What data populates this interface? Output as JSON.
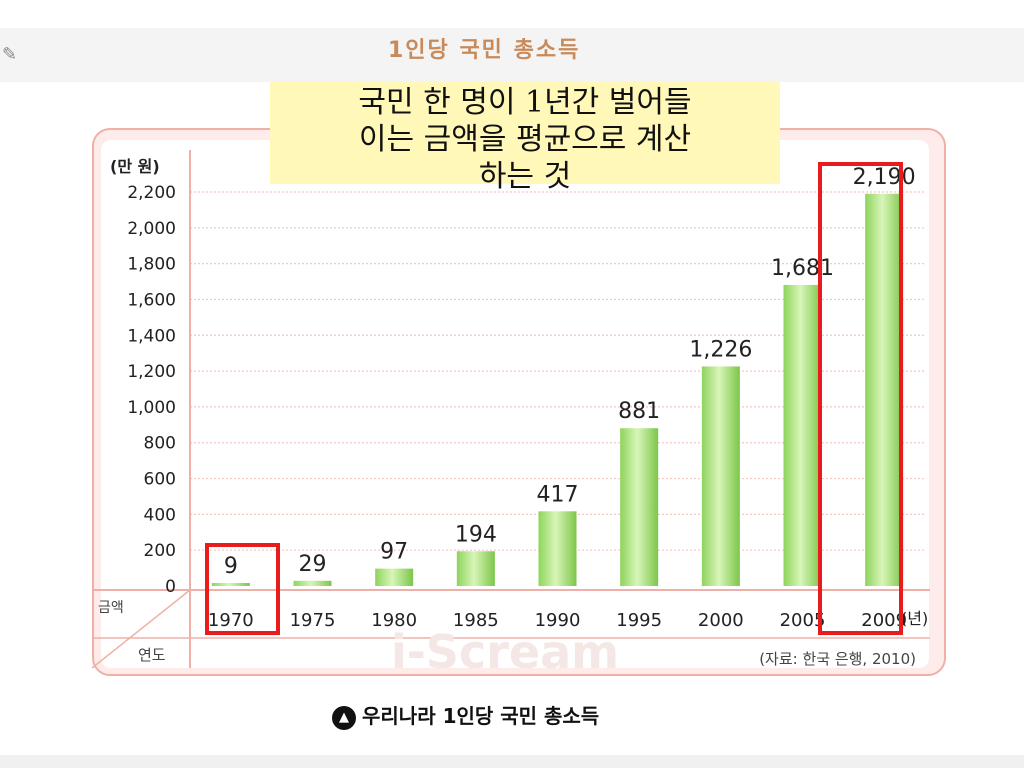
{
  "slide": {
    "title": "1인당 국민 총소득",
    "callout": [
      "국민 한 명이 1년간 벌어들",
      "이는 금액을 평균으로 계산",
      "하는 것"
    ],
    "caption": "우리나라 1인당 국민 총소득"
  },
  "chart_data": {
    "type": "bar",
    "title": "",
    "ylabel": "(만 원)",
    "xlabel": "(년)",
    "row_header_value": "금액",
    "row_header_year": "연도",
    "source": "(자료: 한국 은행, 2010)",
    "watermark": "i-Scream",
    "ylim": [
      0,
      2200
    ],
    "yticks": [
      0,
      200,
      400,
      600,
      800,
      1000,
      1200,
      1400,
      1600,
      1800,
      2000,
      2200
    ],
    "ytick_labels": [
      "0",
      "200",
      "400",
      "600",
      "800",
      "1,000",
      "1,200",
      "1,400",
      "1,600",
      "1,800",
      "2,000",
      "2,200"
    ],
    "categories": [
      "1970",
      "1975",
      "1980",
      "1985",
      "1990",
      "1995",
      "2000",
      "2005",
      "2009"
    ],
    "values": [
      9,
      29,
      97,
      194,
      417,
      881,
      1226,
      1681,
      2190
    ],
    "value_labels": [
      "9",
      "29",
      "97",
      "194",
      "417",
      "881",
      "1,226",
      "1,681",
      "2,190"
    ],
    "grid": true,
    "colors": {
      "bar": "#8ed45c",
      "bar_light": "#d8f5b8",
      "grid": "#f3c7c2",
      "highlight": "#e81c1c"
    },
    "highlighted_categories": [
      "1970",
      "2009"
    ]
  }
}
